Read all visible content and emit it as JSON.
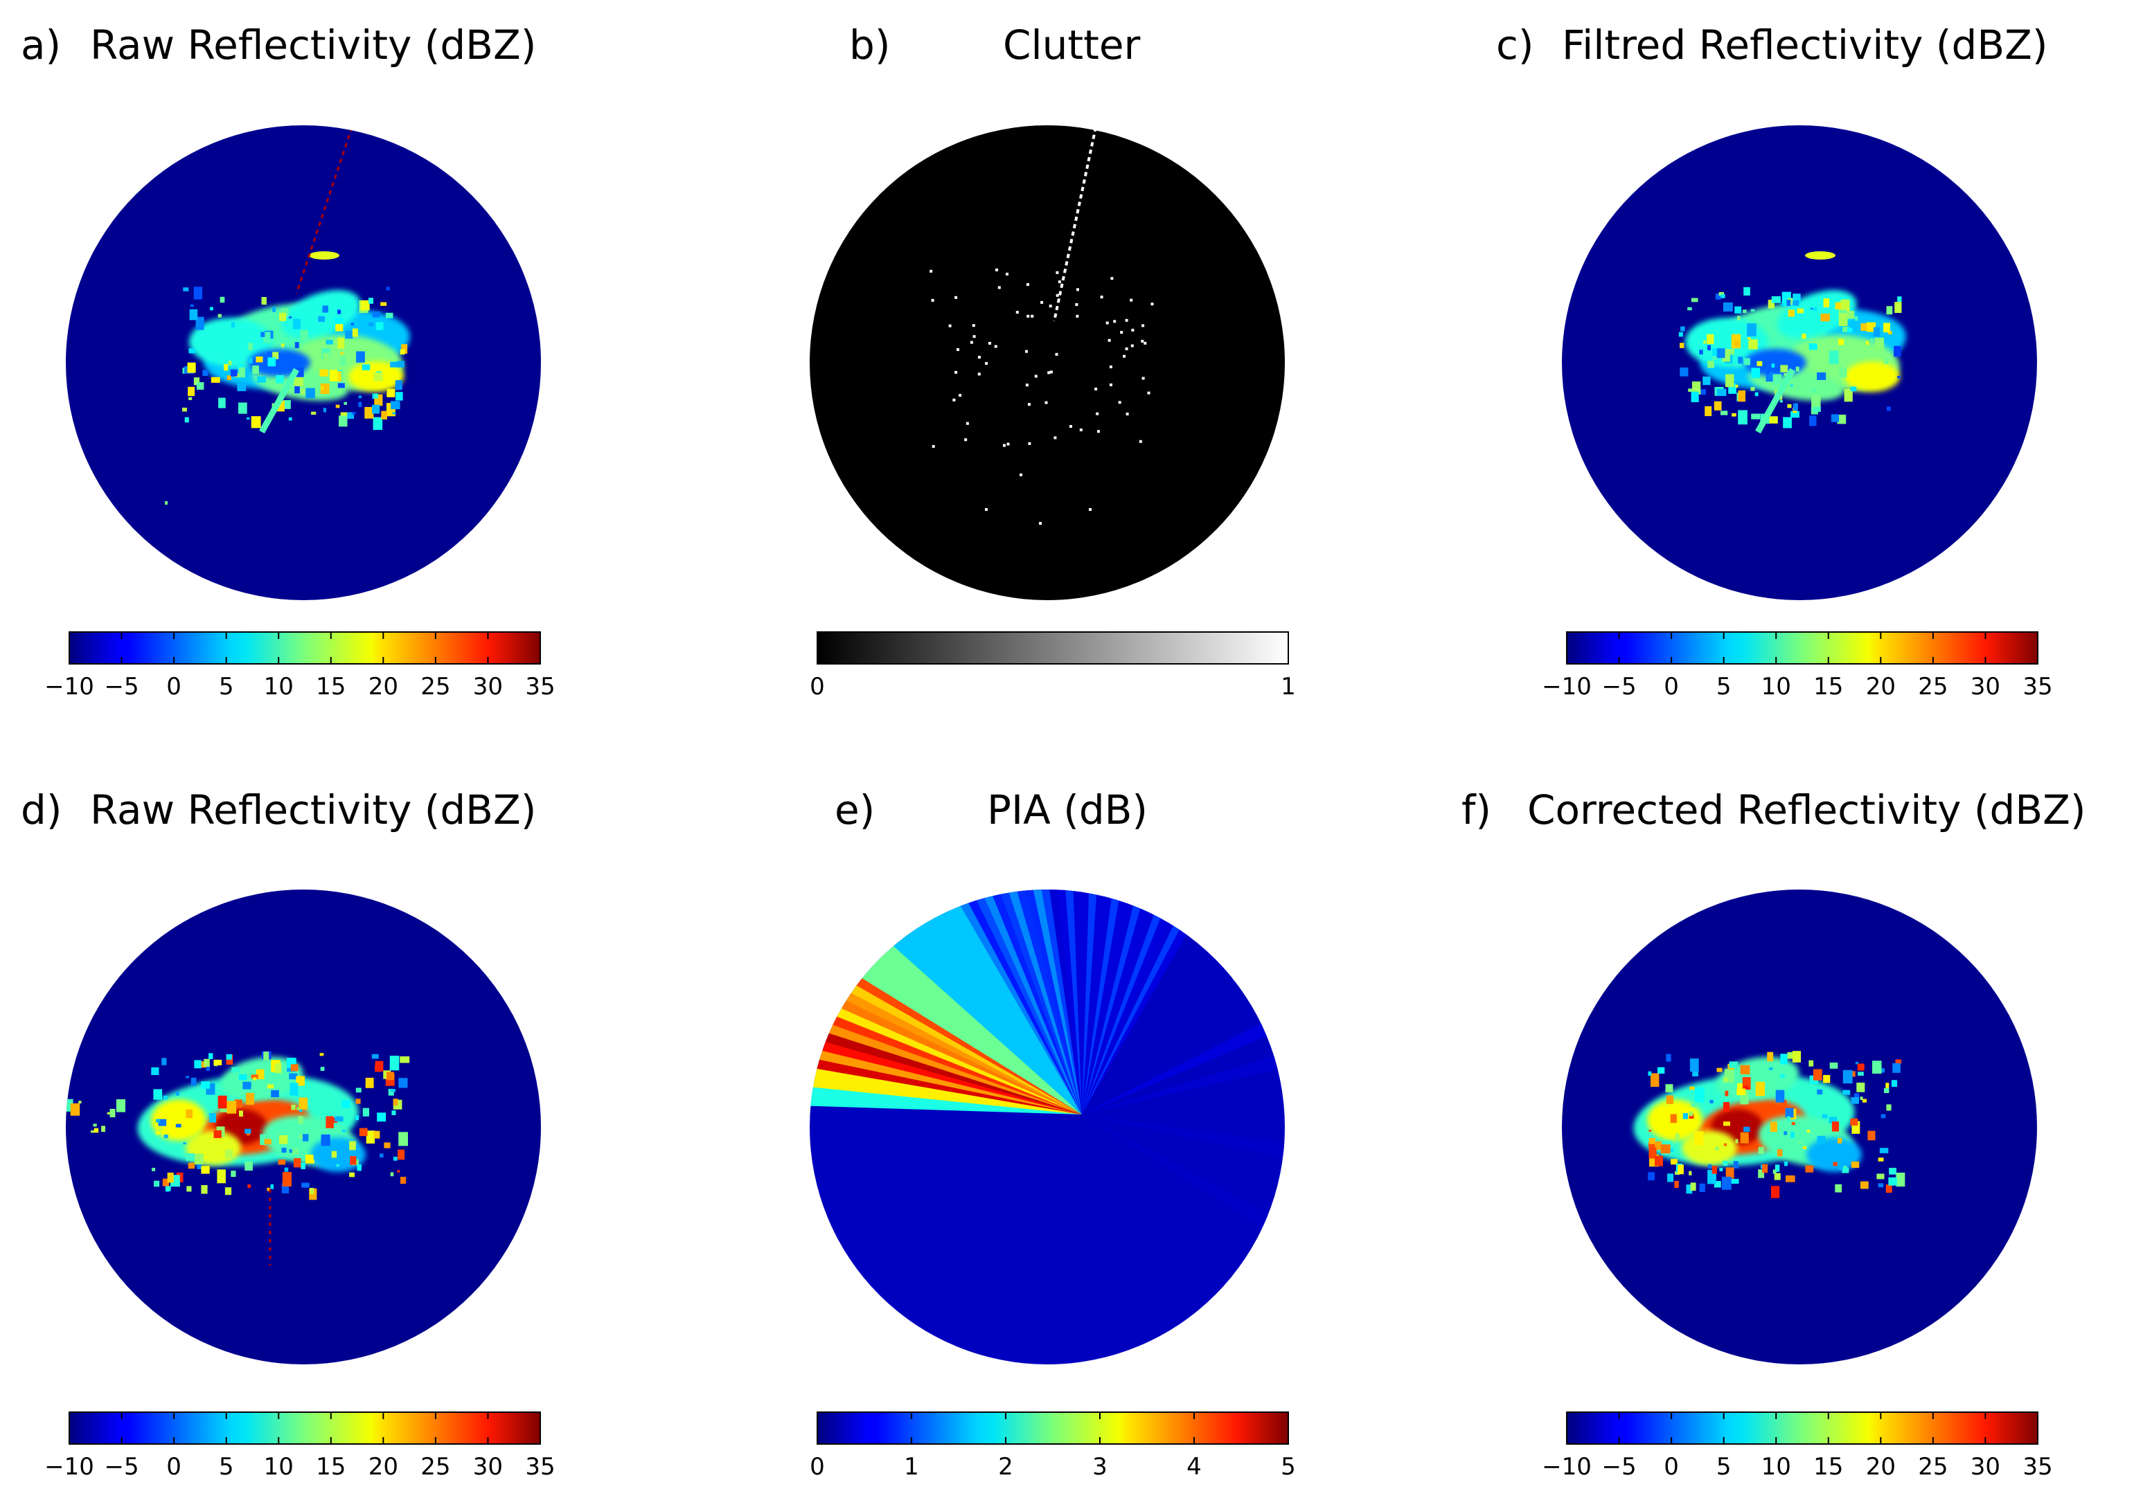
{
  "colors": {
    "disc_background": "#00008f",
    "clutter_background": "#000000",
    "clutter_marks": "#ffffff",
    "page_background": "#ffffff"
  },
  "chart_data": [
    {
      "type": "heatmap",
      "panel_label": "a)",
      "title": "Raw Reflectivity (dBZ)",
      "colormap": "jet",
      "colorbar": {
        "range": [
          -10,
          35
        ],
        "ticks": [
          -10,
          -5,
          0,
          5,
          10,
          15,
          20,
          25,
          30,
          35
        ],
        "tick_labels": [
          "−10",
          "−5",
          "0",
          "5",
          "10",
          "15",
          "20",
          "25",
          "30",
          "35"
        ]
      }
    },
    {
      "type": "heatmap",
      "panel_label": "b)",
      "title": "Clutter",
      "colormap": "gray",
      "colorbar": {
        "range": [
          0,
          1
        ],
        "ticks": [
          0,
          1
        ],
        "tick_labels": [
          "0",
          "1"
        ]
      }
    },
    {
      "type": "heatmap",
      "panel_label": "c)",
      "title": "Filtred Reflectivity (dBZ)",
      "colormap": "jet",
      "colorbar": {
        "range": [
          -10,
          35
        ],
        "ticks": [
          -10,
          -5,
          0,
          5,
          10,
          15,
          20,
          25,
          30,
          35
        ],
        "tick_labels": [
          "−10",
          "−5",
          "0",
          "5",
          "10",
          "15",
          "20",
          "25",
          "30",
          "35"
        ]
      }
    },
    {
      "type": "heatmap",
      "panel_label": "d)",
      "title": "Raw Reflectivity (dBZ)",
      "colormap": "jet",
      "colorbar": {
        "range": [
          -10,
          35
        ],
        "ticks": [
          -10,
          -5,
          0,
          5,
          10,
          15,
          20,
          25,
          30,
          35
        ],
        "tick_labels": [
          "−10",
          "−5",
          "0",
          "5",
          "10",
          "15",
          "20",
          "25",
          "30",
          "35"
        ]
      }
    },
    {
      "type": "heatmap",
      "panel_label": "e)",
      "title": "PIA (dB)",
      "colormap": "jet",
      "colorbar": {
        "range": [
          0,
          5
        ],
        "ticks": [
          0,
          1,
          2,
          3,
          4,
          5
        ],
        "tick_labels": [
          "0",
          "1",
          "2",
          "3",
          "4",
          "5"
        ]
      }
    },
    {
      "type": "heatmap",
      "panel_label": "f)",
      "title": "Corrected Reflectivity (dBZ)",
      "colormap": "jet",
      "colorbar": {
        "range": [
          -10,
          35
        ],
        "ticks": [
          -10,
          -5,
          0,
          5,
          10,
          15,
          20,
          25,
          30,
          35
        ],
        "tick_labels": [
          "−10",
          "−5",
          "0",
          "5",
          "10",
          "15",
          "20",
          "25",
          "30",
          "35"
        ]
      }
    }
  ]
}
